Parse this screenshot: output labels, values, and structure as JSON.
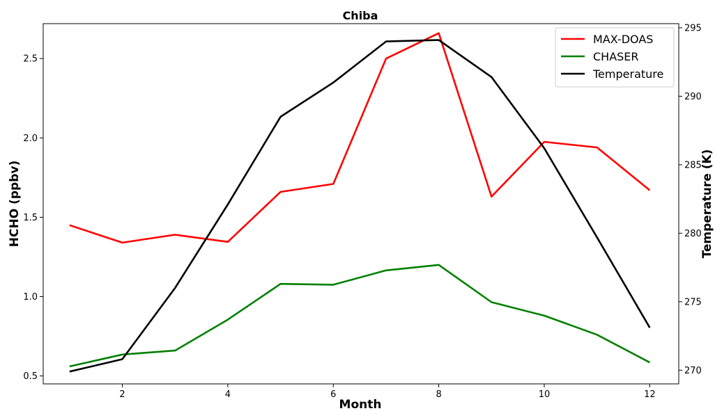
{
  "chart_data": {
    "type": "line",
    "title": "Chiba",
    "xlabel": "Month",
    "ylabel_left": "HCHO (ppbv)",
    "ylabel_right": "Temperature (K)",
    "x": [
      1,
      2,
      3,
      4,
      5,
      6,
      7,
      8,
      9,
      10,
      11,
      12
    ],
    "xticks": [
      2,
      4,
      6,
      8,
      10,
      12
    ],
    "xlim": [
      0.5,
      12.55
    ],
    "ylim_left": [
      0.45,
      2.72
    ],
    "yticks_left": [
      "0.5",
      "1.0",
      "1.5",
      "2.0",
      "2.5"
    ],
    "ylim_right": [
      269,
      295.3
    ],
    "yticks_right": [
      "270",
      "275",
      "280",
      "285",
      "290",
      "295"
    ],
    "grid": false,
    "legend_position": "top-right",
    "series": [
      {
        "name": "MAX-DOAS",
        "axis": "left",
        "color": "#ff0000",
        "values": [
          1.45,
          1.34,
          1.39,
          1.345,
          1.66,
          1.71,
          2.5,
          2.66,
          1.63,
          1.975,
          1.94,
          1.67
        ]
      },
      {
        "name": "CHASER",
        "axis": "left",
        "color": "#008000",
        "values": [
          0.56,
          0.635,
          0.66,
          0.855,
          1.08,
          1.075,
          1.165,
          1.2,
          0.965,
          0.88,
          0.76,
          0.585
        ]
      },
      {
        "name": "Temperature",
        "axis": "right",
        "color": "#000000",
        "values": [
          269.9,
          270.8,
          276.0,
          282.1,
          288.5,
          291.0,
          294.0,
          294.1,
          291.4,
          286.2,
          279.7,
          273.1
        ]
      }
    ]
  }
}
